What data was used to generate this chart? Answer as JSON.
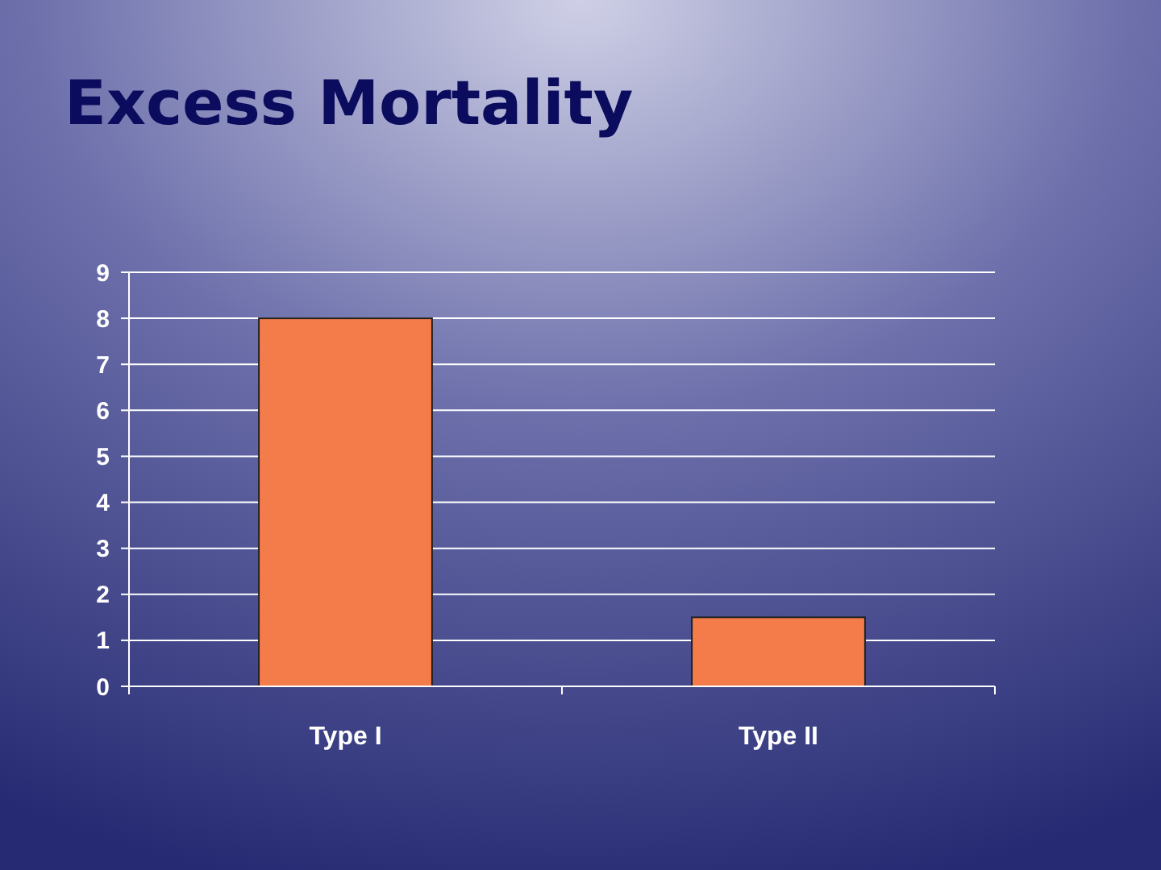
{
  "chart_data": {
    "type": "bar",
    "title": "Excess Mortality",
    "categories": [
      "Type I",
      "Type II"
    ],
    "values": [
      8,
      1.5
    ],
    "color": "#f47c4a",
    "ylim": [
      0,
      9
    ],
    "yticks": [
      0,
      1,
      2,
      3,
      4,
      5,
      6,
      7,
      8,
      9
    ],
    "grid": "y"
  }
}
